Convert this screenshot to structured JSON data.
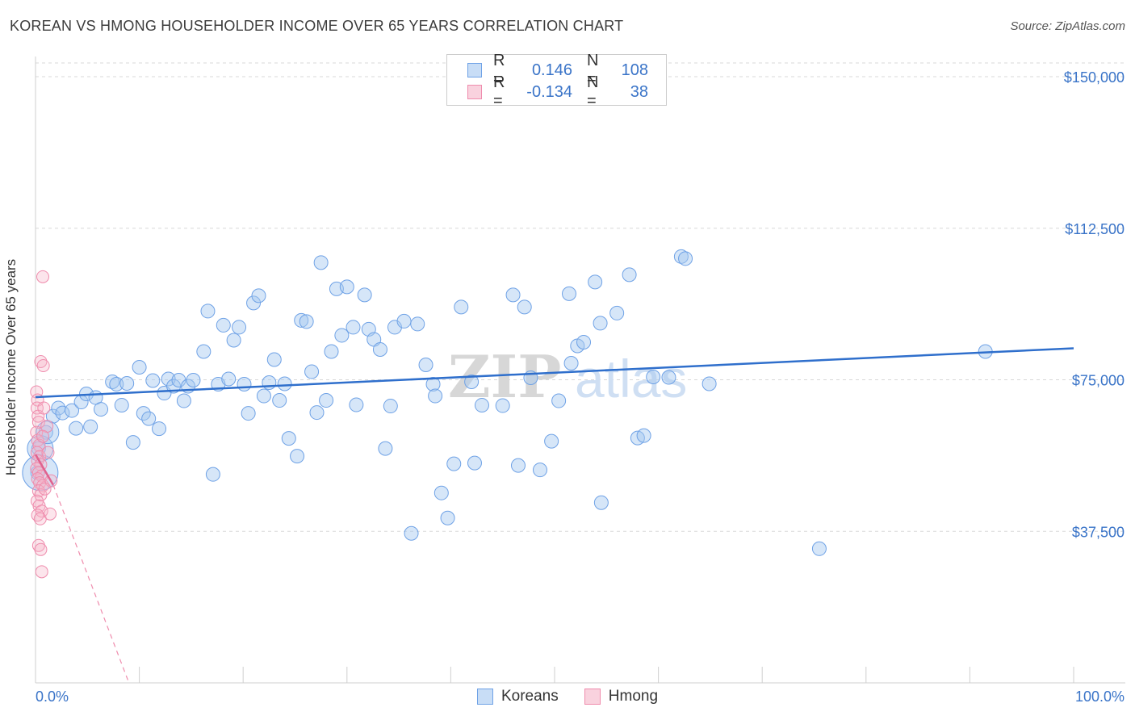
{
  "title": "KOREAN VS HMONG HOUSEHOLDER INCOME OVER 65 YEARS CORRELATION CHART",
  "source": "Source: ZipAtlas.com",
  "watermark": {
    "zip": "ZIP",
    "atlas": "atlas"
  },
  "legend_top": [
    {
      "r_label": "R =",
      "r_value": "0.146",
      "n_label": "N =",
      "n_value": "108",
      "color": "#6fa2e6"
    },
    {
      "r_label": "R =",
      "r_value": "-0.134",
      "n_label": "N =",
      "n_value": "38",
      "color": "#ef8cad"
    }
  ],
  "legend_bottom": [
    {
      "label": "Koreans",
      "color": "#6fa2e6"
    },
    {
      "label": "Hmong",
      "color": "#ef8cad"
    }
  ],
  "chart_data": {
    "type": "scatter",
    "title": "KOREAN VS HMONG HOUSEHOLDER INCOME OVER 65 YEARS CORRELATION CHART",
    "xlabel": "",
    "ylabel": "Householder Income Over 65 years",
    "xlim": [
      0,
      100
    ],
    "ylim": [
      0,
      155000
    ],
    "x_tick_labels": [
      "0.0%",
      "100.0%"
    ],
    "y_ticks": [
      37500,
      75000,
      112500,
      150000
    ],
    "y_tick_labels": [
      "$37,500",
      "$75,000",
      "$112,500",
      "$150,000"
    ],
    "grid": true,
    "series": [
      {
        "name": "Koreans",
        "color": "#6fa2e6",
        "trend": {
          "x0": 0,
          "y0": 70700,
          "x1": 100,
          "y1": 82800
        },
        "points": [
          [
            0.2,
            52000
          ],
          [
            0.3,
            58000
          ],
          [
            1.0,
            62000
          ],
          [
            1.7,
            66000
          ],
          [
            2.2,
            68000
          ],
          [
            2.6,
            66800
          ],
          [
            3.5,
            67400
          ],
          [
            3.9,
            63000
          ],
          [
            4.4,
            69500
          ],
          [
            4.9,
            71500
          ],
          [
            5.3,
            63400
          ],
          [
            5.8,
            70600
          ],
          [
            6.3,
            67700
          ],
          [
            7.4,
            74500
          ],
          [
            7.8,
            73900
          ],
          [
            8.3,
            68700
          ],
          [
            8.8,
            74100
          ],
          [
            9.4,
            59500
          ],
          [
            10.0,
            78100
          ],
          [
            10.4,
            66700
          ],
          [
            10.9,
            65400
          ],
          [
            11.3,
            74800
          ],
          [
            11.9,
            62900
          ],
          [
            12.4,
            71700
          ],
          [
            12.8,
            75200
          ],
          [
            13.3,
            73400
          ],
          [
            13.8,
            74900
          ],
          [
            14.3,
            69800
          ],
          [
            14.7,
            73400
          ],
          [
            15.2,
            74900
          ],
          [
            16.2,
            82000
          ],
          [
            16.6,
            92000
          ],
          [
            17.1,
            51600
          ],
          [
            17.6,
            73900
          ],
          [
            18.1,
            88500
          ],
          [
            18.6,
            75200
          ],
          [
            19.1,
            84800
          ],
          [
            19.6,
            88000
          ],
          [
            20.1,
            73900
          ],
          [
            20.5,
            66700
          ],
          [
            21.0,
            94000
          ],
          [
            21.5,
            95800
          ],
          [
            22.0,
            71000
          ],
          [
            22.5,
            74300
          ],
          [
            23.0,
            80000
          ],
          [
            23.5,
            69900
          ],
          [
            24.0,
            74000
          ],
          [
            24.4,
            60500
          ],
          [
            25.2,
            56100
          ],
          [
            25.6,
            89700
          ],
          [
            26.1,
            89400
          ],
          [
            26.6,
            77000
          ],
          [
            27.1,
            66900
          ],
          [
            27.5,
            104000
          ],
          [
            28.0,
            69900
          ],
          [
            28.5,
            82000
          ],
          [
            29.0,
            97500
          ],
          [
            29.5,
            86000
          ],
          [
            30.0,
            98000
          ],
          [
            30.6,
            88000
          ],
          [
            30.9,
            68800
          ],
          [
            31.7,
            96000
          ],
          [
            32.1,
            87500
          ],
          [
            32.6,
            85000
          ],
          [
            33.2,
            82500
          ],
          [
            33.7,
            58000
          ],
          [
            34.2,
            68500
          ],
          [
            34.6,
            88000
          ],
          [
            35.5,
            89500
          ],
          [
            36.2,
            37000
          ],
          [
            36.8,
            88800
          ],
          [
            37.6,
            78700
          ],
          [
            38.3,
            73900
          ],
          [
            38.5,
            71000
          ],
          [
            39.1,
            47000
          ],
          [
            39.7,
            40800
          ],
          [
            40.3,
            54200
          ],
          [
            41.0,
            93000
          ],
          [
            42.0,
            74500
          ],
          [
            42.3,
            54400
          ],
          [
            43.0,
            68700
          ],
          [
            45.0,
            68600
          ],
          [
            46.0,
            96000
          ],
          [
            46.5,
            53800
          ],
          [
            47.1,
            93000
          ],
          [
            47.7,
            75500
          ],
          [
            48.6,
            52700
          ],
          [
            49.7,
            59800
          ],
          [
            50.4,
            69800
          ],
          [
            51.4,
            96300
          ],
          [
            51.6,
            79100
          ],
          [
            52.2,
            83400
          ],
          [
            52.8,
            84300
          ],
          [
            53.9,
            99200
          ],
          [
            54.4,
            89000
          ],
          [
            54.5,
            44600
          ],
          [
            56.0,
            91500
          ],
          [
            57.2,
            101000
          ],
          [
            58.0,
            60600
          ],
          [
            58.6,
            61200
          ],
          [
            59.5,
            75700
          ],
          [
            61.0,
            75600
          ],
          [
            62.2,
            105500
          ],
          [
            62.6,
            105000
          ],
          [
            64.9,
            74000
          ],
          [
            75.5,
            33200
          ],
          [
            91.5,
            82000
          ]
        ],
        "big_points": [
          [
            0.3,
            52000
          ],
          [
            0.3,
            58000
          ],
          [
            1.0,
            62000
          ]
        ]
      },
      {
        "name": "Hmong",
        "color": "#ef8cad",
        "trend": {
          "x0": 0,
          "y0": 56500,
          "x1": 1.7,
          "y1": 49000,
          "dash_x1": 9.0,
          "dash_y1": 0
        },
        "points": [
          [
            0.1,
            72000
          ],
          [
            0.2,
            70000
          ],
          [
            0.15,
            68000
          ],
          [
            0.25,
            66000
          ],
          [
            0.3,
            64500
          ],
          [
            0.1,
            62000
          ],
          [
            0.2,
            60000
          ],
          [
            0.35,
            58800
          ],
          [
            0.15,
            57000
          ],
          [
            0.4,
            56000
          ],
          [
            0.2,
            55000
          ],
          [
            0.5,
            54000
          ],
          [
            0.1,
            53000
          ],
          [
            0.3,
            52000
          ],
          [
            0.6,
            51200
          ],
          [
            0.2,
            50500
          ],
          [
            0.4,
            49500
          ],
          [
            0.7,
            48800
          ],
          [
            0.3,
            47500
          ],
          [
            0.5,
            46500
          ],
          [
            0.15,
            45000
          ],
          [
            0.35,
            43800
          ],
          [
            0.6,
            42500
          ],
          [
            0.2,
            41500
          ],
          [
            0.45,
            40600
          ],
          [
            1.4,
            41800
          ],
          [
            0.8,
            68000
          ],
          [
            1.1,
            63500
          ],
          [
            0.7,
            61000
          ],
          [
            1.2,
            57000
          ],
          [
            1.5,
            50000
          ],
          [
            0.9,
            48000
          ],
          [
            0.3,
            34000
          ],
          [
            0.5,
            33000
          ],
          [
            0.6,
            27500
          ],
          [
            0.7,
            100500
          ],
          [
            0.5,
            79500
          ],
          [
            0.75,
            78500
          ]
        ]
      }
    ]
  }
}
